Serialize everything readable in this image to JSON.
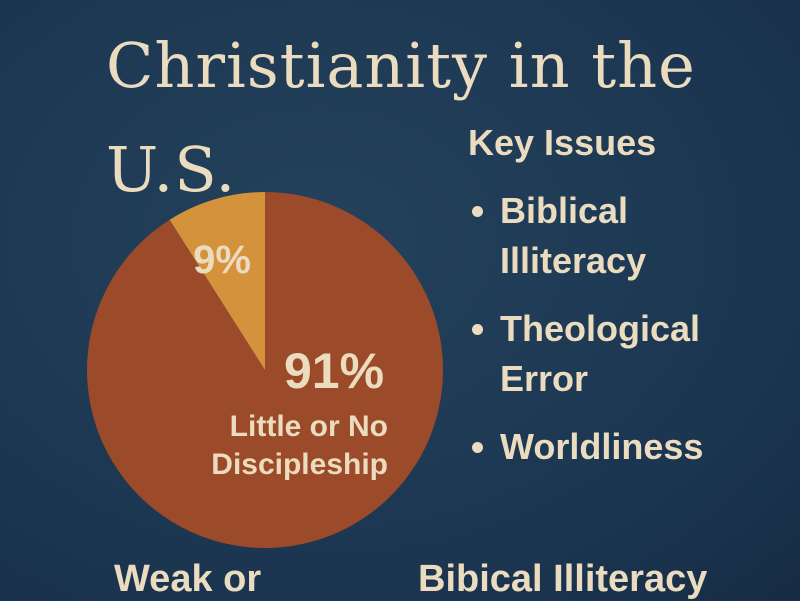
{
  "chart_data": {
    "type": "pie",
    "title": "Christianity in the U.S.",
    "categories": [
      "Little or No Discipleship",
      null
    ],
    "values": [
      91,
      9
    ],
    "value_labels": [
      "91%",
      "9%"
    ],
    "colors": [
      "#9b4a2a",
      "#d5923c"
    ]
  },
  "sidebar": {
    "heading": "Key Issues",
    "items": [
      "Biblical Illiteracy",
      "Theological Error",
      "Worldliness"
    ]
  },
  "footer": [
    "Weak or",
    "Bibical Illiteracy"
  ]
}
